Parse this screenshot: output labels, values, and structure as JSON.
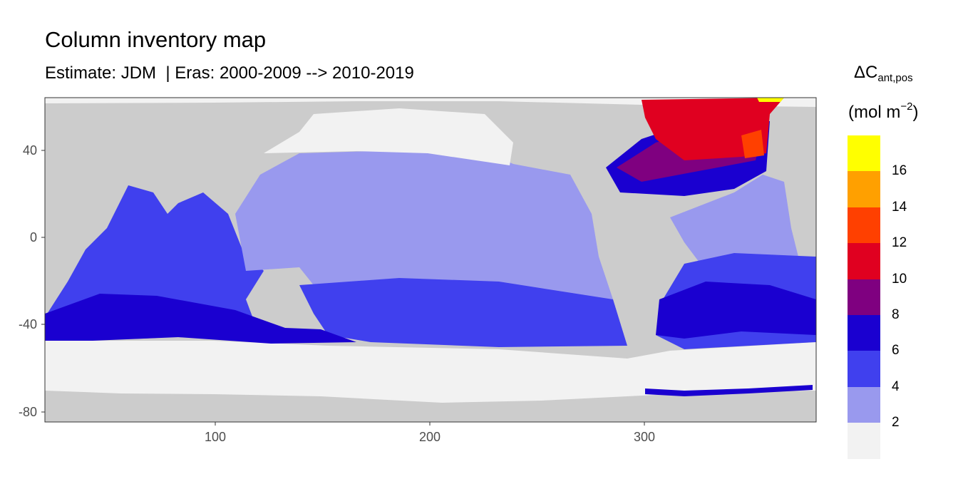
{
  "title": "Column inventory map",
  "subtitle": "Estimate: JDM  | Eras: 2000-2009 --> 2010-2019",
  "legend": {
    "title_main": "ΔC",
    "title_sub": "ant,pos",
    "unit_prefix": "(mol m",
    "unit_sup": "−2",
    "unit_suffix": ")",
    "colors": [
      "#f2f2f2",
      "#9999ee",
      "#4040ee",
      "#1a00d0",
      "#7f0080",
      "#e00020",
      "#ff4000",
      "#ffa000",
      "#ffff00"
    ],
    "breaks": [
      "2",
      "4",
      "6",
      "8",
      "10",
      "12",
      "14",
      "16"
    ]
  },
  "chart_data": {
    "type": "heatmap",
    "title": "Column inventory map",
    "subtitle": "Estimate: JDM  | Eras: 2000-2009 --> 2010-2019",
    "xlim": [
      20,
      380
    ],
    "ylim": [
      -85,
      65
    ],
    "x_ticks": [
      "100",
      "200",
      "300"
    ],
    "y_ticks": [
      "40",
      "0",
      "-40",
      "-80"
    ],
    "land_color": "#cccccc",
    "grid": false
  }
}
